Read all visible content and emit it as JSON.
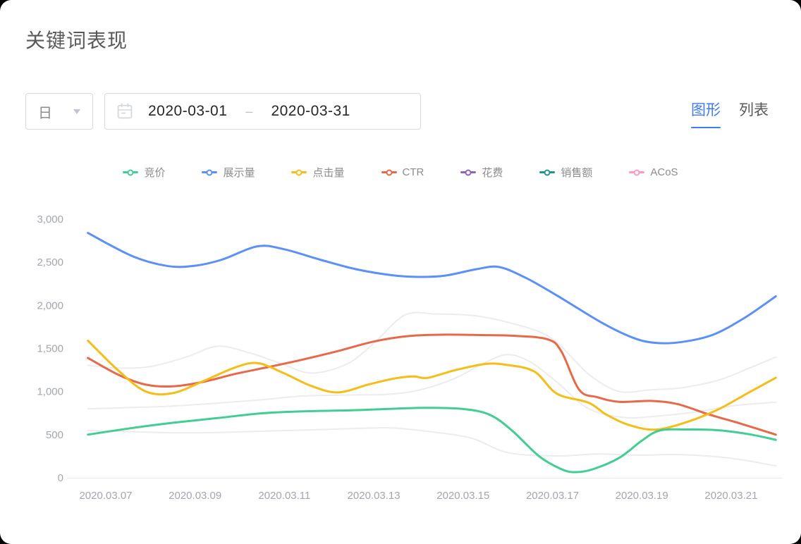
{
  "page": {
    "title": "关键词表现"
  },
  "controls": {
    "granularity": {
      "value": "日"
    },
    "date_range": {
      "start": "2020-03-01",
      "separator": "–",
      "end": "2020-03-31"
    },
    "view_tabs": [
      {
        "key": "graph",
        "label": "图形",
        "active": true
      },
      {
        "key": "list",
        "label": "列表",
        "active": false
      }
    ]
  },
  "legend": [
    {
      "key": "bid",
      "label": "竞价",
      "color": "#42ce92"
    },
    {
      "key": "impressions",
      "label": "展示量",
      "color": "#5b8ff9"
    },
    {
      "key": "clicks",
      "label": "点击量",
      "color": "#f6bd16"
    },
    {
      "key": "ctr",
      "label": "CTR",
      "color": "#e8684a"
    },
    {
      "key": "spend",
      "label": "花费",
      "color": "#945fb9"
    },
    {
      "key": "sales",
      "label": "销售额",
      "color": "#1e9493"
    },
    {
      "key": "acos",
      "label": "ACoS",
      "color": "#ff99c3"
    }
  ],
  "chart_data": {
    "type": "line",
    "title": "",
    "x_unit": "day of March 2020",
    "x_axis": {
      "tick_days": [
        7,
        9,
        11,
        13,
        15,
        17,
        19,
        21
      ],
      "tick_labels": [
        "2020.03.07",
        "2020.03.09",
        "2020.03.11",
        "2020.03.13",
        "2020.03.15",
        "2020.03.17",
        "2020.03.19",
        "2020.03.21"
      ]
    },
    "y_axis": {
      "min": 0,
      "max": 3000,
      "tick_values": [
        3000,
        2500,
        2000,
        1500,
        1000,
        500,
        0
      ],
      "tick_labels": [
        "3,000",
        "2,500",
        "2,000",
        "1,500",
        "1,000",
        "500",
        "0"
      ]
    },
    "grid": false,
    "legend_position": "top-center",
    "muted_series": [
      {
        "name": "muted-1",
        "color": "#ececec",
        "points": [
          [
            6.6,
            1305
          ],
          [
            7.3,
            1272
          ],
          [
            8.0,
            1290
          ],
          [
            8.8,
            1400
          ],
          [
            9.5,
            1525
          ],
          [
            10.2,
            1452
          ],
          [
            10.9,
            1330
          ],
          [
            11.6,
            1215
          ],
          [
            12.4,
            1320
          ],
          [
            13.0,
            1560
          ],
          [
            13.7,
            1888
          ],
          [
            14.4,
            1900
          ],
          [
            15.3,
            1878
          ],
          [
            16.1,
            1790
          ],
          [
            16.7,
            1695
          ],
          [
            17.1,
            1570
          ],
          [
            17.5,
            1360
          ],
          [
            17.9,
            1165
          ],
          [
            18.5,
            1000
          ],
          [
            19.2,
            1020
          ],
          [
            19.9,
            1045
          ],
          [
            20.7,
            1130
          ],
          [
            21.4,
            1270
          ],
          [
            22.0,
            1400
          ]
        ]
      },
      {
        "name": "muted-2",
        "color": "#ececec",
        "points": [
          [
            6.6,
            800
          ],
          [
            7.6,
            815
          ],
          [
            8.5,
            832
          ],
          [
            9.5,
            866
          ],
          [
            10.5,
            905
          ],
          [
            11.4,
            948
          ],
          [
            12.4,
            960
          ],
          [
            13.3,
            968
          ],
          [
            14.0,
            1015
          ],
          [
            14.8,
            1150
          ],
          [
            15.5,
            1340
          ],
          [
            16.0,
            1428
          ],
          [
            16.5,
            1345
          ],
          [
            17.1,
            1110
          ],
          [
            17.8,
            805
          ],
          [
            18.6,
            700
          ],
          [
            19.4,
            718
          ],
          [
            20.2,
            762
          ],
          [
            21.0,
            832
          ],
          [
            21.7,
            866
          ],
          [
            22.0,
            876
          ]
        ]
      },
      {
        "name": "muted-3",
        "color": "#ececec",
        "points": [
          [
            6.6,
            548
          ],
          [
            7.6,
            535
          ],
          [
            8.5,
            522
          ],
          [
            9.5,
            526
          ],
          [
            10.6,
            542
          ],
          [
            11.6,
            556
          ],
          [
            12.6,
            572
          ],
          [
            13.4,
            578
          ],
          [
            14.3,
            532
          ],
          [
            15.2,
            458
          ],
          [
            16.0,
            292
          ],
          [
            17.1,
            253
          ],
          [
            18.0,
            276
          ],
          [
            19.0,
            262
          ],
          [
            19.7,
            270
          ],
          [
            20.5,
            252
          ],
          [
            21.2,
            212
          ],
          [
            22.0,
            138
          ]
        ]
      }
    ],
    "series": [
      {
        "name": "CTR",
        "key": "ctr",
        "color": "#e8684a",
        "points": [
          [
            6.6,
            1390
          ],
          [
            7.3,
            1190
          ],
          [
            7.9,
            1080
          ],
          [
            8.5,
            1060
          ],
          [
            9.2,
            1115
          ],
          [
            9.9,
            1205
          ],
          [
            10.6,
            1280
          ],
          [
            11.4,
            1370
          ],
          [
            12.2,
            1470
          ],
          [
            13.0,
            1580
          ],
          [
            13.8,
            1645
          ],
          [
            14.6,
            1660
          ],
          [
            15.4,
            1655
          ],
          [
            16.2,
            1645
          ],
          [
            16.9,
            1605
          ],
          [
            17.2,
            1465
          ],
          [
            17.6,
            1020
          ],
          [
            18.0,
            935
          ],
          [
            18.5,
            880
          ],
          [
            19.2,
            892
          ],
          [
            19.8,
            855
          ],
          [
            20.5,
            735
          ],
          [
            21.2,
            630
          ],
          [
            22.0,
            500
          ]
        ]
      },
      {
        "name": "点击量",
        "key": "clicks",
        "color": "#f6bd16",
        "points": [
          [
            6.6,
            1590
          ],
          [
            7.3,
            1235
          ],
          [
            7.9,
            1000
          ],
          [
            8.5,
            982
          ],
          [
            9.2,
            1125
          ],
          [
            9.9,
            1280
          ],
          [
            10.4,
            1330
          ],
          [
            11.0,
            1210
          ],
          [
            11.6,
            1065
          ],
          [
            12.2,
            990
          ],
          [
            12.9,
            1085
          ],
          [
            13.5,
            1155
          ],
          [
            13.9,
            1175
          ],
          [
            14.2,
            1158
          ],
          [
            14.8,
            1245
          ],
          [
            15.5,
            1320
          ],
          [
            16.0,
            1308
          ],
          [
            16.6,
            1230
          ],
          [
            17.1,
            975
          ],
          [
            17.8,
            872
          ],
          [
            18.2,
            735
          ],
          [
            18.7,
            615
          ],
          [
            19.3,
            558
          ],
          [
            20.0,
            645
          ],
          [
            20.7,
            790
          ],
          [
            21.4,
            990
          ],
          [
            22.0,
            1160
          ]
        ]
      },
      {
        "name": "竞价",
        "key": "bid",
        "color": "#42ce92",
        "points": [
          [
            6.6,
            500
          ],
          [
            7.6,
            578
          ],
          [
            8.5,
            638
          ],
          [
            9.5,
            692
          ],
          [
            10.5,
            748
          ],
          [
            11.5,
            772
          ],
          [
            12.5,
            782
          ],
          [
            13.5,
            802
          ],
          [
            14.2,
            812
          ],
          [
            15.0,
            798
          ],
          [
            15.6,
            730
          ],
          [
            16.1,
            545
          ],
          [
            16.7,
            250
          ],
          [
            17.2,
            100
          ],
          [
            17.5,
            65
          ],
          [
            17.9,
            98
          ],
          [
            18.5,
            232
          ],
          [
            19.0,
            430
          ],
          [
            19.4,
            548
          ],
          [
            20.0,
            560
          ],
          [
            20.7,
            552
          ],
          [
            21.4,
            505
          ],
          [
            22.0,
            440
          ]
        ]
      },
      {
        "name": "展示量",
        "key": "impressions",
        "color": "#5b8ff9",
        "points": [
          [
            6.6,
            2840
          ],
          [
            7.6,
            2570
          ],
          [
            8.4,
            2455
          ],
          [
            9.0,
            2460
          ],
          [
            9.6,
            2530
          ],
          [
            10.4,
            2685
          ],
          [
            11.0,
            2650
          ],
          [
            11.8,
            2530
          ],
          [
            12.6,
            2420
          ],
          [
            13.4,
            2350
          ],
          [
            14.0,
            2330
          ],
          [
            14.6,
            2345
          ],
          [
            15.3,
            2420
          ],
          [
            15.8,
            2445
          ],
          [
            16.4,
            2320
          ],
          [
            17.1,
            2115
          ],
          [
            18.1,
            1800
          ],
          [
            18.8,
            1625
          ],
          [
            19.3,
            1565
          ],
          [
            19.9,
            1575
          ],
          [
            20.6,
            1660
          ],
          [
            21.3,
            1855
          ],
          [
            22.0,
            2105
          ]
        ]
      }
    ]
  }
}
